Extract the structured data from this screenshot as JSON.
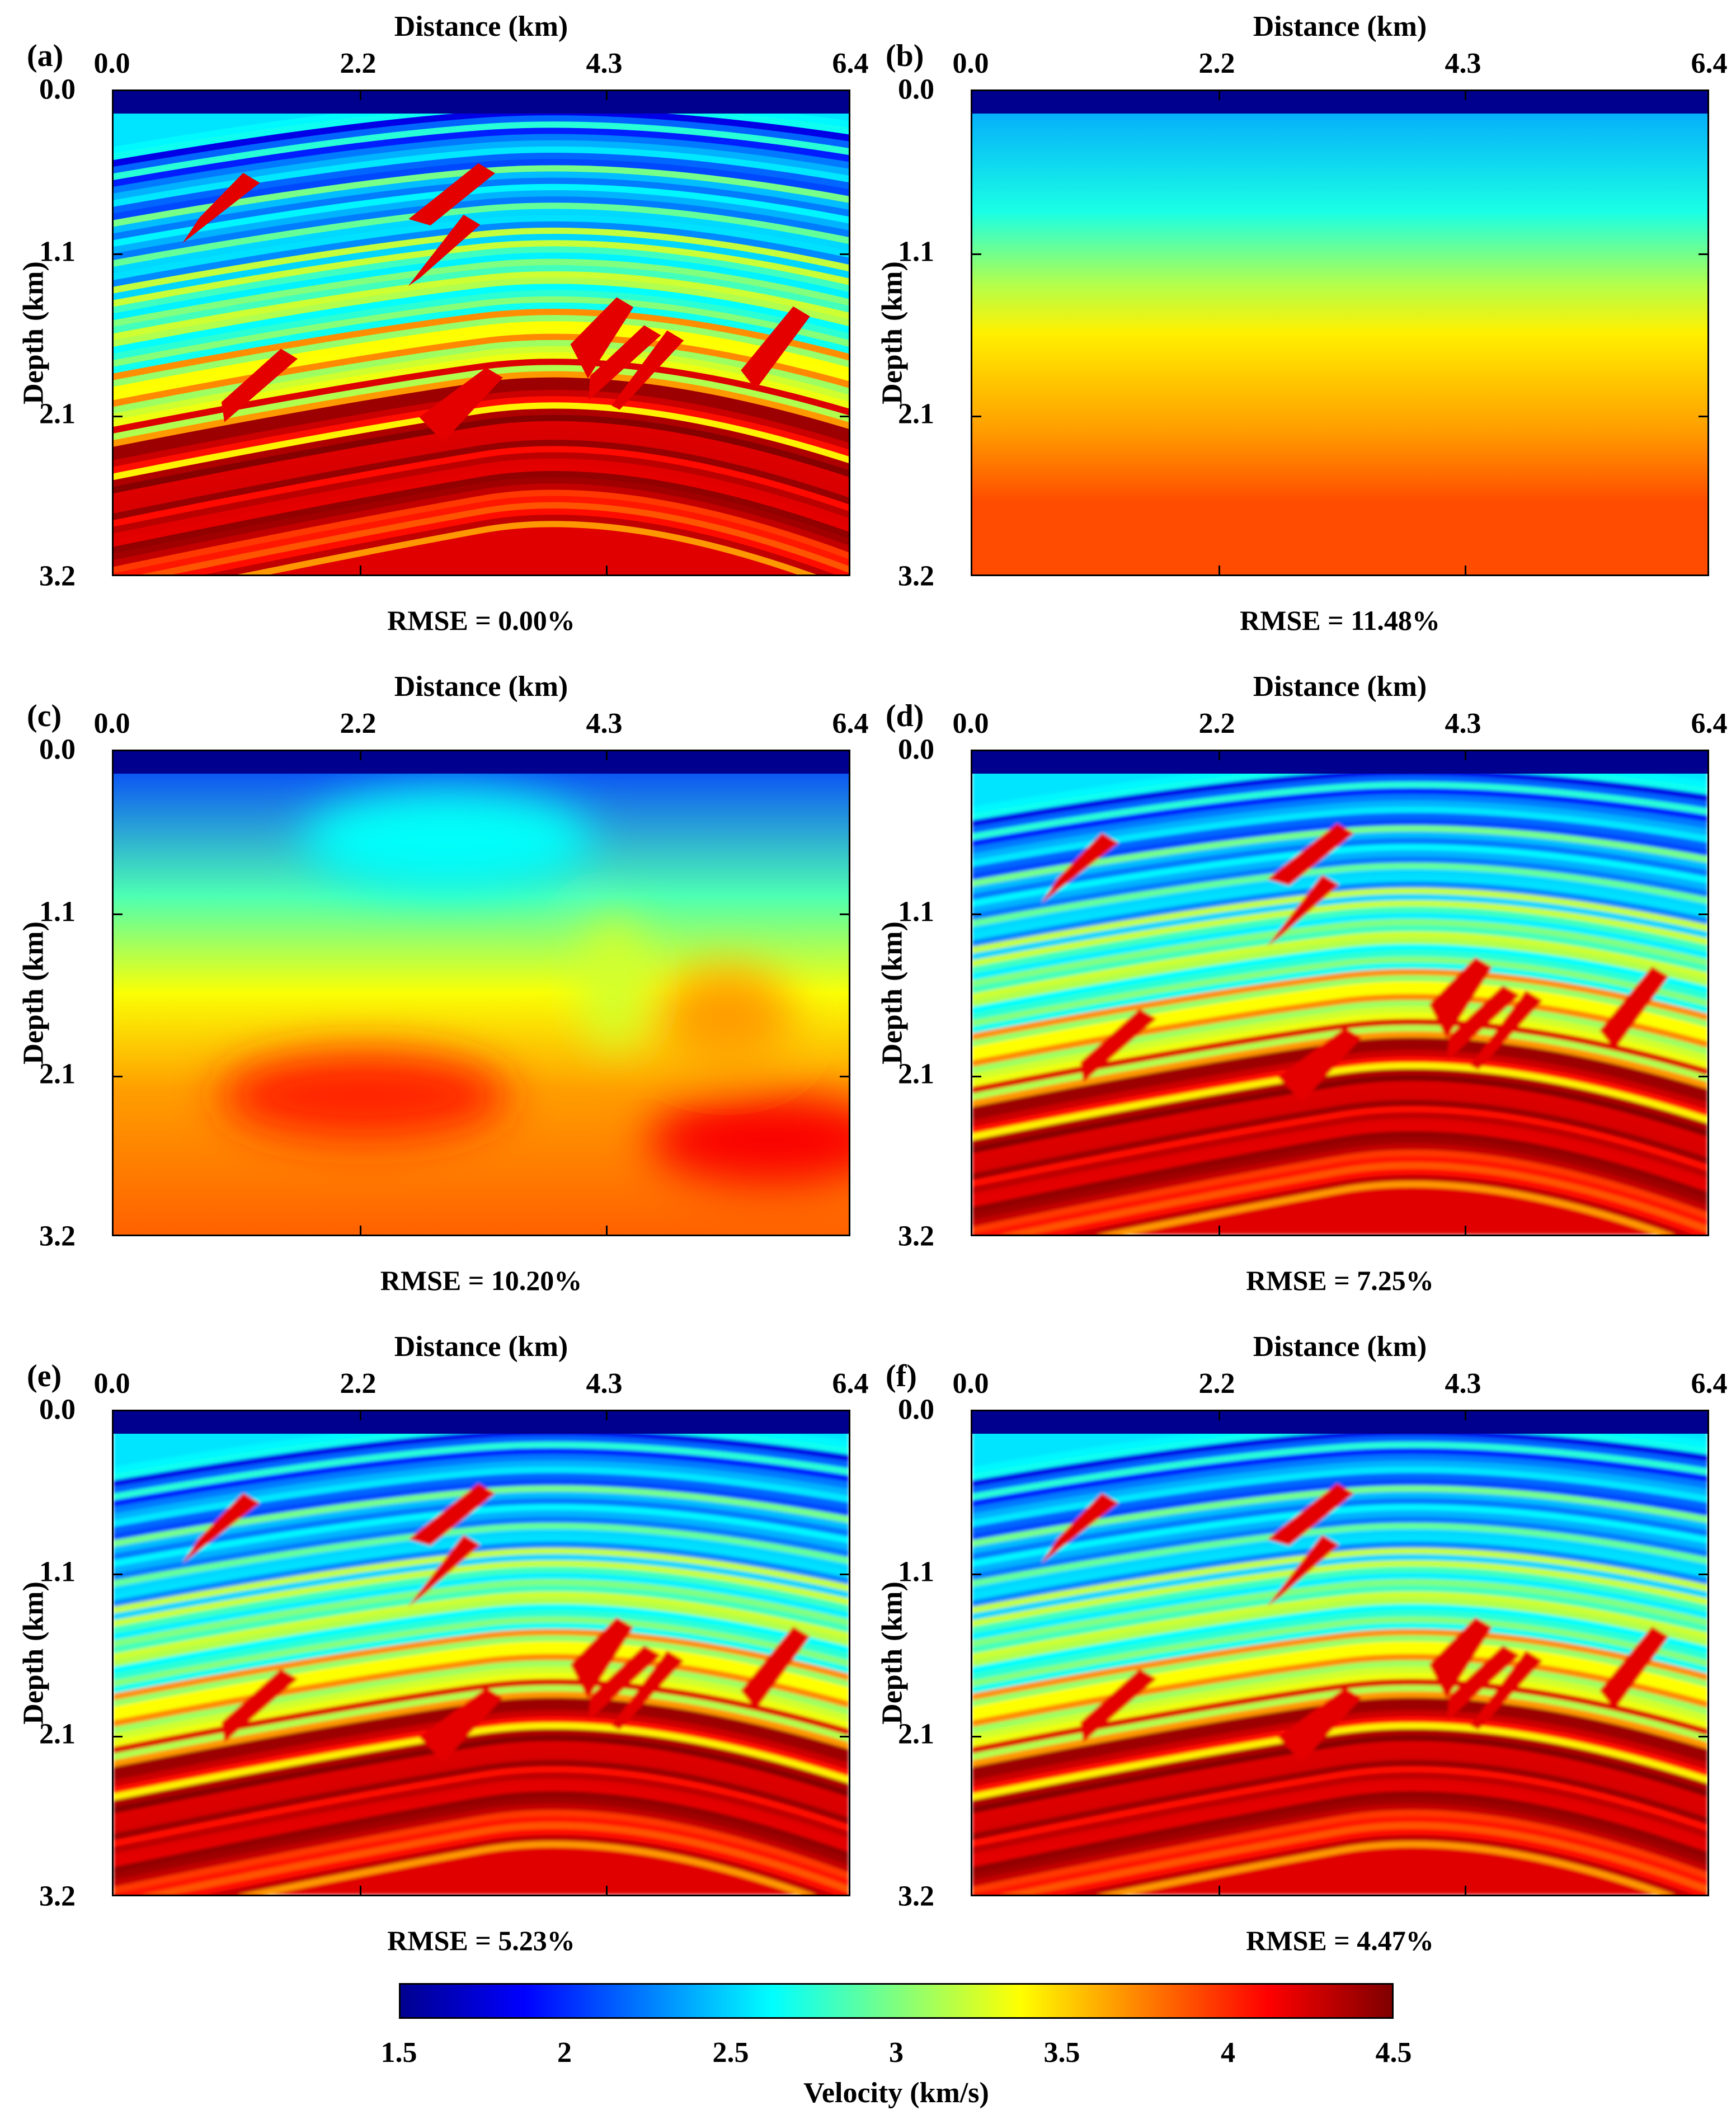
{
  "figure": {
    "x_axis_label": "Distance (km)",
    "y_axis_label": "Depth (km)",
    "x_ticks": [
      "0.0",
      "2.2",
      "4.3",
      "6.4"
    ],
    "y_ticks": [
      "0.0",
      "1.1",
      "2.1",
      "3.2"
    ],
    "panels": [
      {
        "label": "(a)",
        "rmse": "RMSE = 0.00%",
        "style": "true"
      },
      {
        "label": "(b)",
        "rmse": "RMSE = 11.48%",
        "style": "initial"
      },
      {
        "label": "(c)",
        "rmse": "RMSE = 10.20%",
        "style": "smooth"
      },
      {
        "label": "(d)",
        "rmse": "RMSE = 7.25%",
        "style": "inverted"
      },
      {
        "label": "(e)",
        "rmse": "RMSE = 5.23%",
        "style": "inverted"
      },
      {
        "label": "(f)",
        "rmse": "RMSE = 4.47%",
        "style": "inverted"
      }
    ],
    "colorbar": {
      "label": "Velocity (km/s)",
      "ticks": [
        "1.5",
        "2",
        "2.5",
        "3",
        "3.5",
        "4",
        "4.5"
      ],
      "colormap": "jet"
    }
  }
}
